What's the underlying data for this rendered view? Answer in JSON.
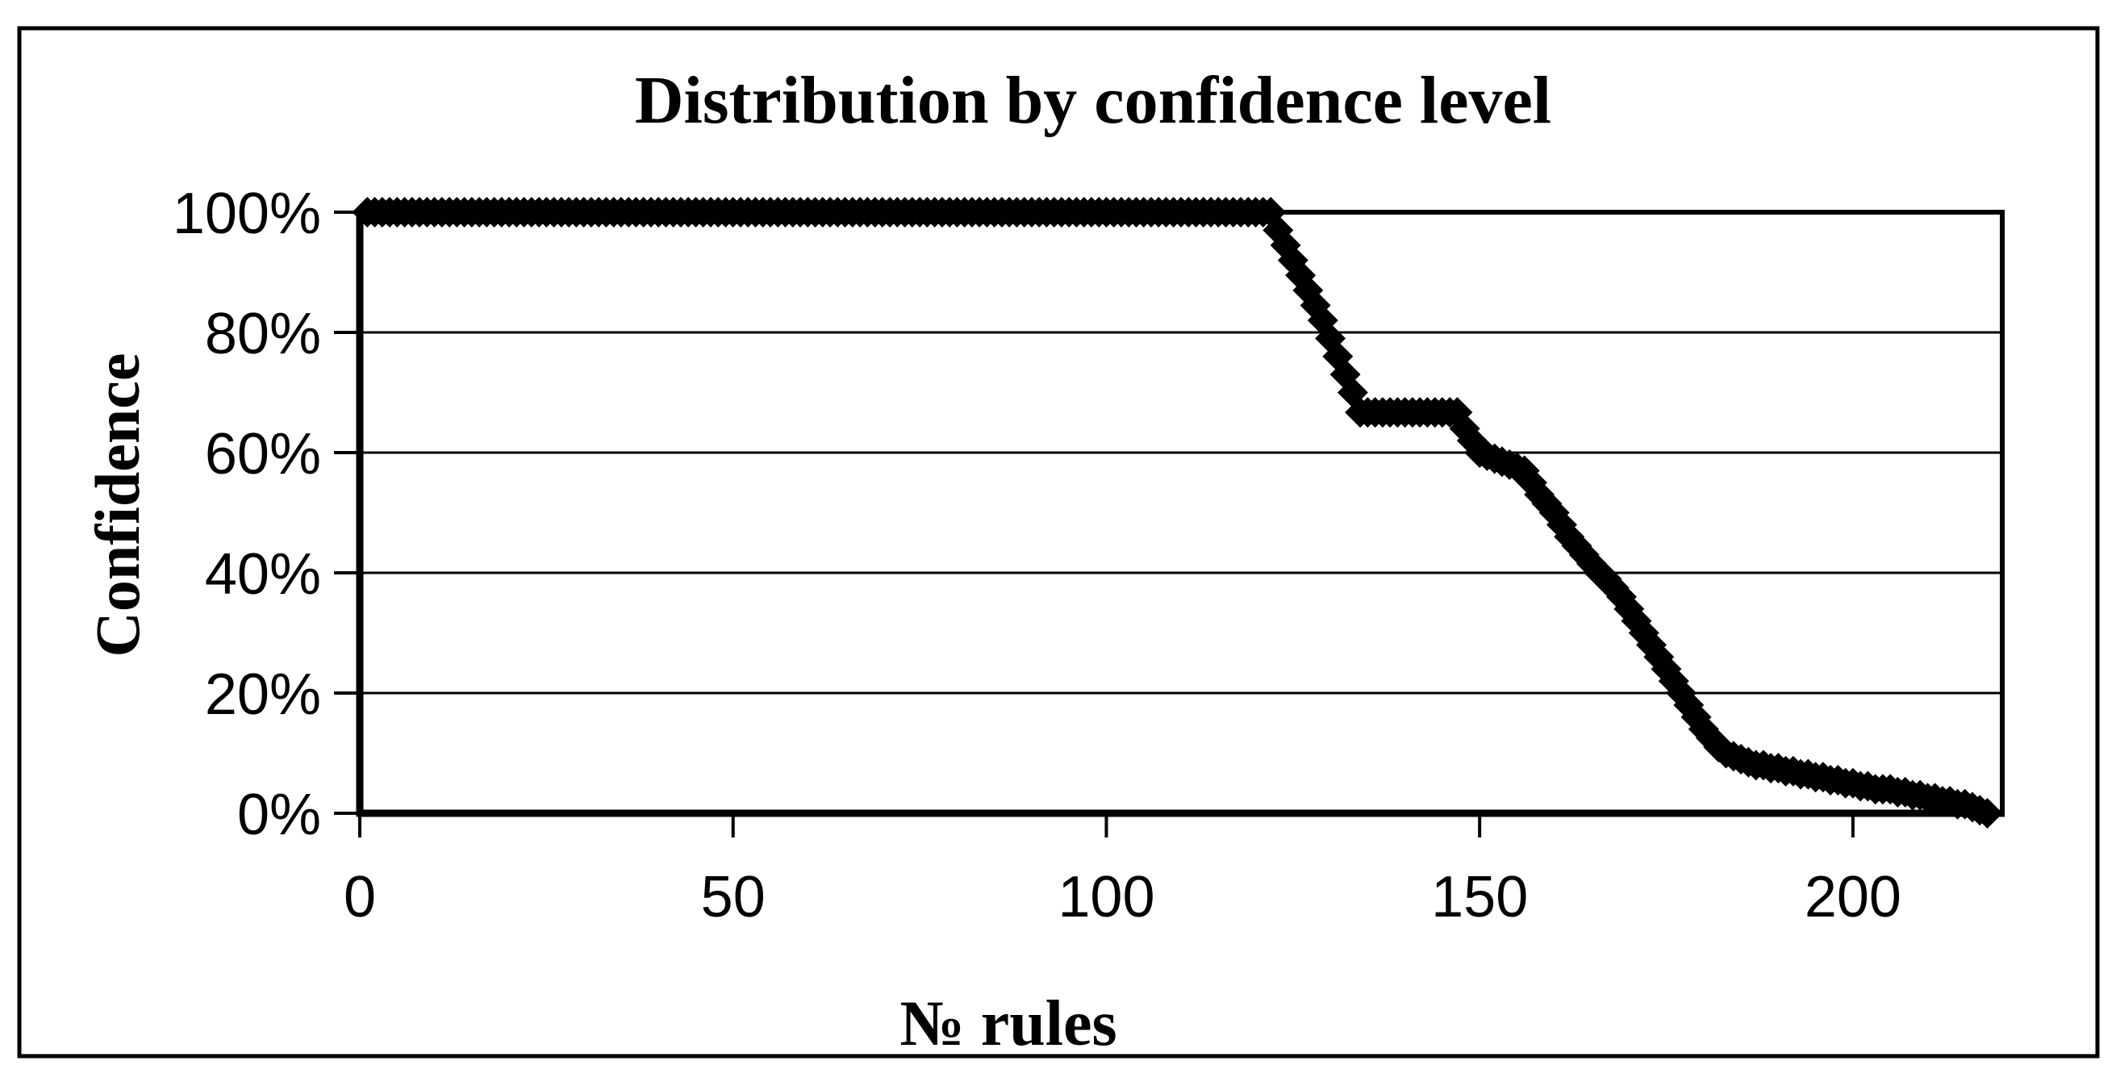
{
  "figure": {
    "title": "Distribution by confidence level",
    "background_color": "#ffffff",
    "foreground_color": "#000000",
    "x_axis": {
      "label": "№ rules",
      "tick_values": [
        0,
        50,
        100,
        150,
        200
      ],
      "tick_labels": [
        "0",
        "50",
        "100",
        "150",
        "200"
      ],
      "min": 0,
      "max": 220
    },
    "y_axis": {
      "label": "Confidence",
      "tick_values": [
        100,
        80,
        60,
        40,
        20,
        0
      ],
      "tick_labels": [
        "100%",
        "80%",
        "60%",
        "40%",
        "20%",
        "0%"
      ],
      "min_percent": 0,
      "max_percent": 100
    }
  },
  "chart_data": {
    "type": "scatter",
    "title": "Distribution by confidence level",
    "xlabel": "№ rules",
    "ylabel": "Confidence",
    "xlim": [
      0,
      220
    ],
    "ylim_percent": [
      0,
      100
    ],
    "grid": "horizontal",
    "legend": "none",
    "marker": "diamond",
    "marker_color": "#000000",
    "x_start": 1,
    "x_step": 1,
    "n_points": 218,
    "confidence_percent": [
      100,
      100,
      100,
      100,
      100,
      100,
      100,
      100,
      100,
      100,
      100,
      100,
      100,
      100,
      100,
      100,
      100,
      100,
      100,
      100,
      100,
      100,
      100,
      100,
      100,
      100,
      100,
      100,
      100,
      100,
      100,
      100,
      100,
      100,
      100,
      100,
      100,
      100,
      100,
      100,
      100,
      100,
      100,
      100,
      100,
      100,
      100,
      100,
      100,
      100,
      100,
      100,
      100,
      100,
      100,
      100,
      100,
      100,
      100,
      100,
      100,
      100,
      100,
      100,
      100,
      100,
      100,
      100,
      100,
      100,
      100,
      100,
      100,
      100,
      100,
      100,
      100,
      100,
      100,
      100,
      100,
      100,
      100,
      100,
      100,
      100,
      100,
      100,
      100,
      100,
      100,
      100,
      100,
      100,
      100,
      100,
      100,
      100,
      100,
      100,
      100,
      100,
      100,
      100,
      100,
      100,
      100,
      100,
      100,
      100,
      100,
      100,
      100,
      100,
      100,
      100,
      100,
      100,
      100,
      100,
      100,
      100,
      97,
      94.5,
      92,
      89.5,
      87,
      84.5,
      82,
      79,
      76,
      73,
      70,
      66.7,
      66.7,
      66.7,
      66.7,
      66.7,
      66.7,
      66.7,
      66.7,
      66.7,
      66.7,
      66.7,
      66.7,
      66.7,
      66.7,
      64,
      62,
      60,
      59.5,
      59,
      58.5,
      58,
      57.5,
      57,
      55,
      53,
      51.5,
      50,
      48,
      46,
      44.5,
      43,
      41.5,
      40,
      39,
      37.5,
      36,
      34,
      32,
      30,
      28,
      26,
      24,
      22,
      20,
      18,
      16,
      14,
      12.5,
      11,
      10,
      9.5,
      9,
      8.5,
      8,
      8,
      7.5,
      7.5,
      7,
      7,
      6.5,
      6.5,
      6,
      6,
      5.5,
      5.5,
      5,
      5,
      4.5,
      4.5,
      4,
      4,
      4,
      3.5,
      3.5,
      3,
      3,
      2.5,
      2.5,
      2,
      2,
      1.5,
      1.5,
      1,
      0.5,
      0
    ]
  }
}
